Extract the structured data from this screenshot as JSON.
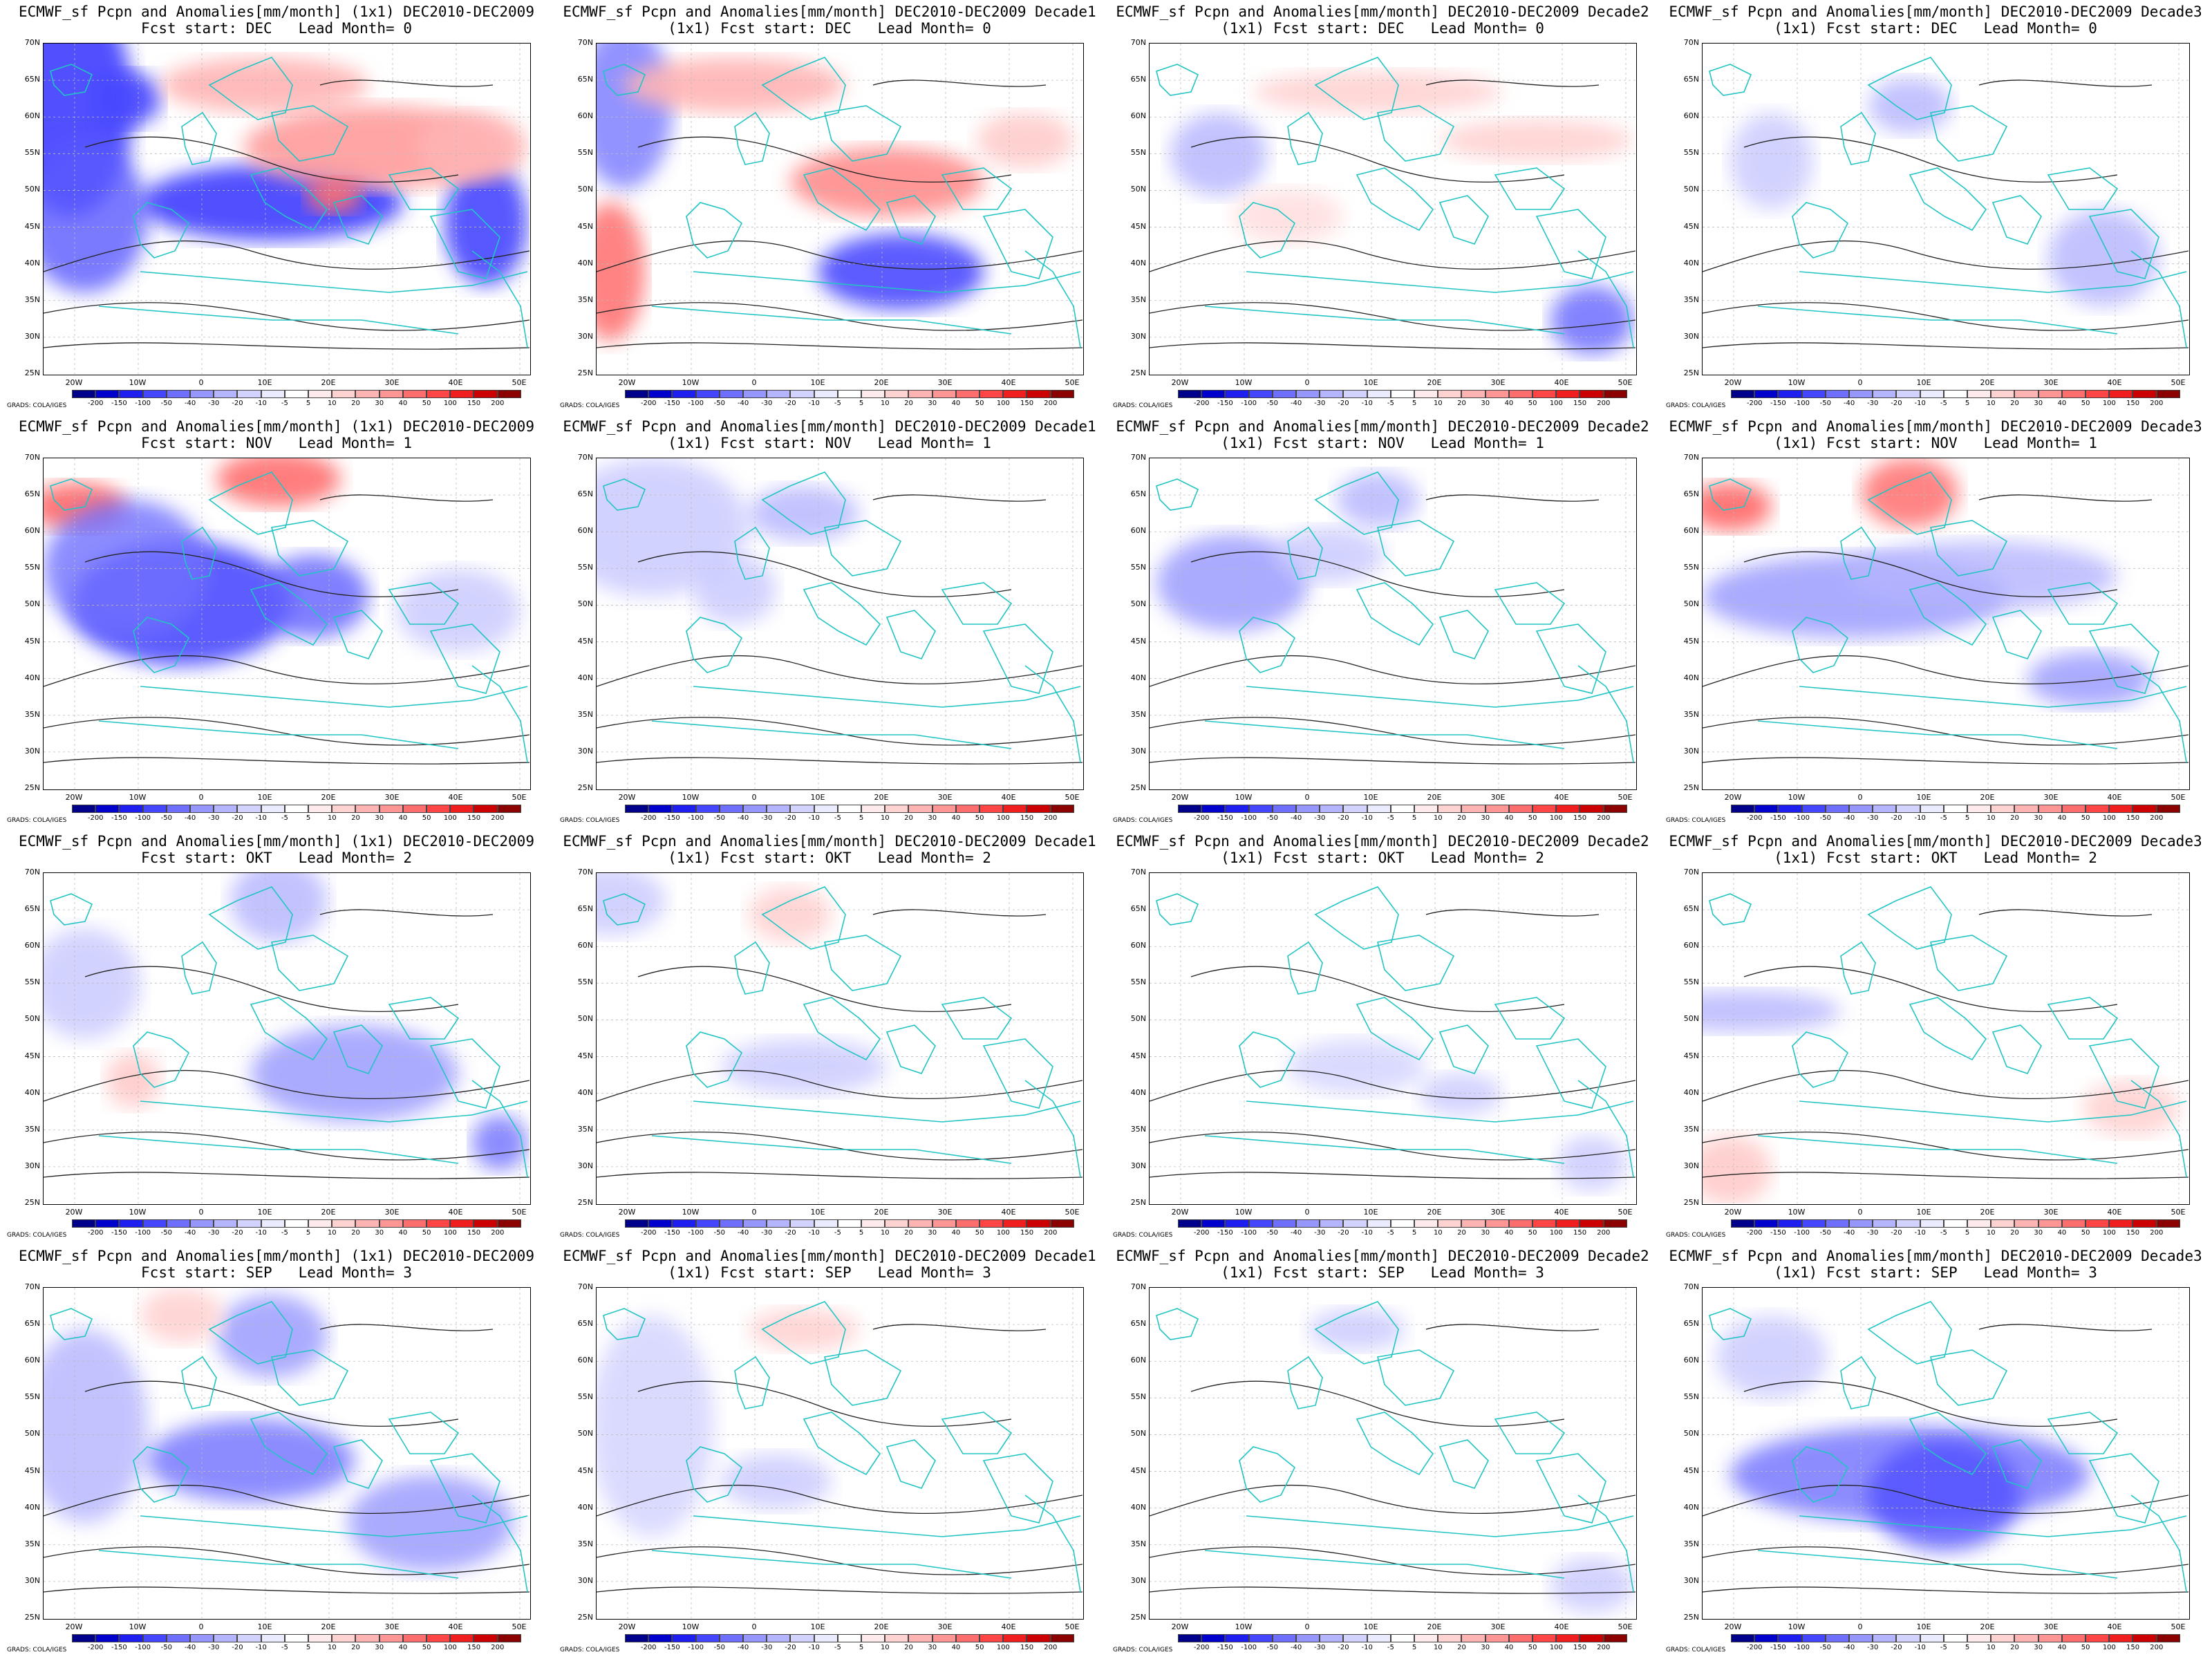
{
  "model": "ECMWF_sf",
  "credit": "GRADS: COLA/IGES",
  "y_ticks": [
    "70N",
    "65N",
    "60N",
    "55N",
    "50N",
    "45N",
    "40N",
    "35N",
    "30N",
    "25N"
  ],
  "x_ticks": [
    "20W",
    "10W",
    "0",
    "10E",
    "20E",
    "30E",
    "40E",
    "50E"
  ],
  "colorbar": {
    "labels": [
      "-200",
      "-150",
      "-100",
      "-50",
      "-40",
      "-30",
      "-20",
      "-10",
      "-5",
      "5",
      "10",
      "20",
      "30",
      "40",
      "50",
      "100",
      "150",
      "200"
    ],
    "colors": [
      "#00008b",
      "#0000cd",
      "#1e1ef0",
      "#4646ff",
      "#6e6eff",
      "#9696ff",
      "#b4b4ff",
      "#d2d2ff",
      "#ebebff",
      "#ffffff",
      "#ffebeb",
      "#ffd2d2",
      "#ffb4b4",
      "#ff9696",
      "#ff6e6e",
      "#ff4646",
      "#f01e1e",
      "#cd0000",
      "#8b0000"
    ]
  },
  "panels": [
    {
      "title1": "ECMWF_sf Pcpn and Anomalies[mm/month] (1x1) DEC2010-DEC2009",
      "title2": "Fcst start: DEC   Lead Month= 0"
    },
    {
      "title1": "ECMWF_sf Pcpn and Anomalies[mm/month] DEC2010-DEC2009 Decade1",
      "title2": "(1x1) Fcst start: DEC   Lead Month= 0"
    },
    {
      "title1": "ECMWF_sf Pcpn and Anomalies[mm/month] DEC2010-DEC2009 Decade2",
      "title2": "(1x1) Fcst start: DEC   Lead Month= 0"
    },
    {
      "title1": "ECMWF_sf Pcpn and Anomalies[mm/month] DEC2010-DEC2009 Decade3",
      "title2": "(1x1) Fcst start: DEC   Lead Month= 0"
    },
    {
      "title1": "ECMWF_sf Pcpn and Anomalies[mm/month] (1x1) DEC2010-DEC2009",
      "title2": "Fcst start: NOV   Lead Month= 1"
    },
    {
      "title1": "ECMWF_sf Pcpn and Anomalies[mm/month] DEC2010-DEC2009 Decade1",
      "title2": "(1x1) Fcst start: NOV   Lead Month= 1"
    },
    {
      "title1": "ECMWF_sf Pcpn and Anomalies[mm/month] DEC2010-DEC2009 Decade2",
      "title2": "(1x1) Fcst start: NOV   Lead Month= 1"
    },
    {
      "title1": "ECMWF_sf Pcpn and Anomalies[mm/month] DEC2010-DEC2009 Decade3",
      "title2": "(1x1) Fcst start: NOV   Lead Month= 1"
    },
    {
      "title1": "ECMWF_sf Pcpn and Anomalies[mm/month] (1x1) DEC2010-DEC2009",
      "title2": "Fcst start: OKT   Lead Month= 2"
    },
    {
      "title1": "ECMWF_sf Pcpn and Anomalies[mm/month] DEC2010-DEC2009 Decade1",
      "title2": "(1x1) Fcst start: OKT   Lead Month= 2"
    },
    {
      "title1": "ECMWF_sf Pcpn and Anomalies[mm/month] DEC2010-DEC2009 Decade2",
      "title2": "(1x1) Fcst start: OKT   Lead Month= 2"
    },
    {
      "title1": "ECMWF_sf Pcpn and Anomalies[mm/month] DEC2010-DEC2009 Decade3",
      "title2": "(1x1) Fcst start: OKT   Lead Month= 2"
    },
    {
      "title1": "ECMWF_sf Pcpn and Anomalies[mm/month] (1x1) DEC2010-DEC2009",
      "title2": "Fcst start: SEP   Lead Month= 3"
    },
    {
      "title1": "ECMWF_sf Pcpn and Anomalies[mm/month] DEC2010-DEC2009 Decade1",
      "title2": "(1x1) Fcst start: SEP   Lead Month= 3"
    },
    {
      "title1": "ECMWF_sf Pcpn and Anomalies[mm/month] DEC2010-DEC2009 Decade2",
      "title2": "(1x1) Fcst start: SEP   Lead Month= 3"
    },
    {
      "title1": "ECMWF_sf Pcpn and Anomalies[mm/month] DEC2010-DEC2009 Decade3",
      "title2": "(1x1) Fcst start: SEP   Lead Month= 3"
    }
  ]
}
